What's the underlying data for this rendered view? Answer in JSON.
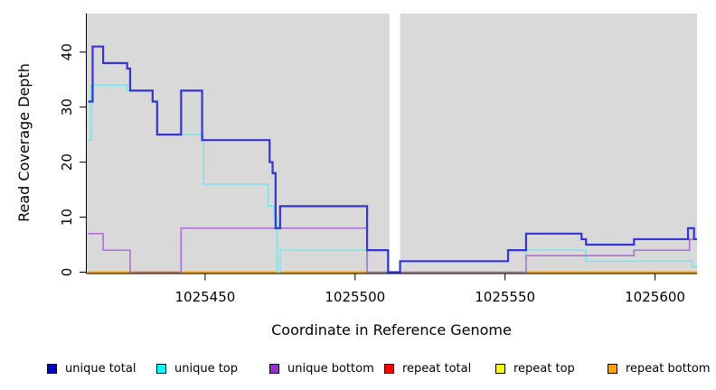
{
  "figure": {
    "background": "#ffffff",
    "panel_background": "#d9d9d9",
    "axis_color": "#000000"
  },
  "chart_data": {
    "type": "line",
    "subtype": "step-coverage",
    "title": "",
    "xlabel": "Coordinate in Reference Genome",
    "ylabel": "Read Coverage Depth",
    "xlim": [
      1025411,
      1025614
    ],
    "ylim": [
      0,
      47
    ],
    "x_ticks": [
      "1025450",
      "1025500",
      "1025550",
      "1025600"
    ],
    "x_tick_values": [
      1025450,
      1025500,
      1025550,
      1025600
    ],
    "y_ticks": [
      "0",
      "10",
      "20",
      "30",
      "40"
    ],
    "y_tick_values": [
      0,
      10,
      20,
      30,
      40
    ],
    "grid": false,
    "legend_position": "bottom",
    "gap_region": {
      "start": 1025511.5,
      "end": 1025515
    },
    "draw_order": [
      "repeat total",
      "repeat top",
      "repeat bottom",
      "unique top",
      "unique bottom",
      "unique total"
    ],
    "series": [
      {
        "name": "unique total",
        "color": "#3434d0",
        "width": 2.2,
        "steps": [
          [
            1025411,
            31
          ],
          [
            1025412.5,
            41
          ],
          [
            1025416,
            38
          ],
          [
            1025424,
            37
          ],
          [
            1025425,
            33
          ],
          [
            1025432.5,
            31
          ],
          [
            1025434,
            25
          ],
          [
            1025442,
            33
          ],
          [
            1025449,
            24
          ],
          [
            1025471.5,
            20
          ],
          [
            1025472.5,
            18
          ],
          [
            1025473.5,
            8
          ],
          [
            1025475,
            12
          ],
          [
            1025504,
            4
          ],
          [
            1025511,
            0
          ],
          [
            1025515,
            2
          ],
          [
            1025551,
            4
          ],
          [
            1025557,
            7
          ],
          [
            1025575.5,
            6
          ],
          [
            1025577,
            5
          ],
          [
            1025593,
            6
          ],
          [
            1025611,
            8
          ],
          [
            1025613,
            6
          ]
        ]
      },
      {
        "name": "unique top",
        "color": "#7ce4ea",
        "width": 1.6,
        "steps": [
          [
            1025411,
            24
          ],
          [
            1025412,
            34
          ],
          [
            1025424,
            33
          ],
          [
            1025432.5,
            31
          ],
          [
            1025434,
            25
          ],
          [
            1025449.5,
            16
          ],
          [
            1025471,
            12
          ],
          [
            1025473,
            10
          ],
          [
            1025474,
            0
          ],
          [
            1025475,
            4
          ],
          [
            1025504,
            0
          ],
          [
            1025557,
            4
          ],
          [
            1025577,
            2
          ],
          [
            1025612.5,
            1
          ]
        ]
      },
      {
        "name": "unique bottom",
        "color": "#ac6fd6",
        "width": 1.6,
        "steps": [
          [
            1025411,
            7
          ],
          [
            1025416,
            4
          ],
          [
            1025425,
            0
          ],
          [
            1025442,
            8
          ],
          [
            1025504,
            0
          ],
          [
            1025557,
            3
          ],
          [
            1025593,
            4
          ],
          [
            1025611.5,
            6
          ]
        ]
      },
      {
        "name": "repeat total",
        "color": "#dd2222",
        "width": 1.2,
        "steps": [
          [
            1025411,
            0
          ]
        ]
      },
      {
        "name": "repeat top",
        "color": "#ffff00",
        "width": 1.2,
        "steps": [
          [
            1025411,
            0
          ]
        ]
      },
      {
        "name": "repeat bottom",
        "color": "#ffa500",
        "width": 2,
        "steps": [
          [
            1025411,
            0
          ]
        ]
      }
    ]
  },
  "legend": {
    "items": [
      {
        "label": "unique total",
        "color": "#0000cc"
      },
      {
        "label": "unique top",
        "color": "#00ffff"
      },
      {
        "label": "unique bottom",
        "color": "#9932cc"
      },
      {
        "label": "repeat total",
        "color": "#ff0000"
      },
      {
        "label": "repeat top",
        "color": "#ffff00"
      },
      {
        "label": "repeat bottom",
        "color": "#ffa500"
      }
    ]
  }
}
